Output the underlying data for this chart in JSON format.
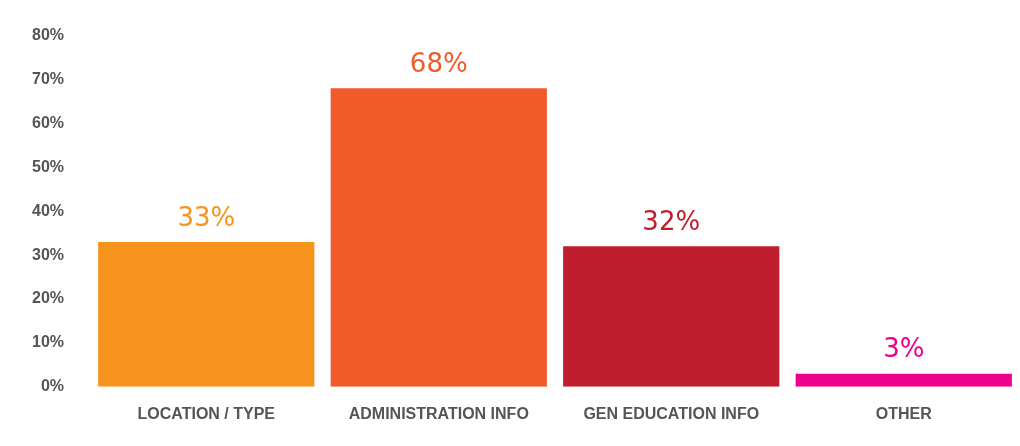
{
  "chart_data": {
    "type": "bar",
    "categories": [
      "LOCATION / TYPE",
      "ADMINISTRATION INFO",
      "GEN EDUCATION INFO",
      "OTHER"
    ],
    "values": [
      33,
      68,
      32,
      3
    ],
    "colors": [
      "#f7941d",
      "#f15a29",
      "#be1e2d",
      "#ec008c"
    ],
    "value_labels": [
      "33%",
      "68%",
      "32%",
      "3%"
    ],
    "ylim": [
      0,
      80
    ],
    "yticks": [
      {
        "value": 0,
        "label": "0%"
      },
      {
        "value": 10,
        "label": "10%"
      },
      {
        "value": 20,
        "label": "20%"
      },
      {
        "value": 30,
        "label": "30%"
      },
      {
        "value": 40,
        "label": "40%"
      },
      {
        "value": 50,
        "label": "50%"
      },
      {
        "value": 60,
        "label": "60%"
      },
      {
        "value": 70,
        "label": "70%"
      },
      {
        "value": 80,
        "label": "80%"
      }
    ],
    "grid": false,
    "legend": false
  }
}
